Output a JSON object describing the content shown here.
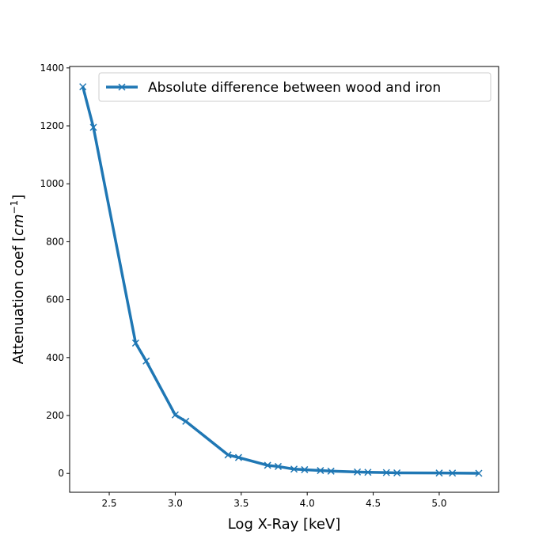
{
  "chart_data": {
    "type": "line",
    "title": "",
    "xlabel": "Log X-Ray [keV]",
    "ylabel_main": "Attenuation coef [",
    "ylabel_unit_base": "cm",
    "ylabel_unit_exp": "−1",
    "ylabel_close": "]",
    "xlim": [
      2.2,
      5.45
    ],
    "ylim": [
      -65,
      1405
    ],
    "xticks": [
      2.5,
      3.0,
      3.5,
      4.0,
      4.5,
      5.0
    ],
    "xtick_labels": [
      "2.5",
      "3.0",
      "3.5",
      "4.0",
      "4.5",
      "5.0"
    ],
    "yticks": [
      0,
      200,
      400,
      600,
      800,
      1000,
      1200,
      1400
    ],
    "ytick_labels": [
      "0",
      "200",
      "400",
      "600",
      "800",
      "1000",
      "1200",
      "1400"
    ],
    "grid": false,
    "legend_position": "top-right",
    "series": [
      {
        "name": "Absolute difference between wood and iron",
        "color": "#1f77b4",
        "marker": "x",
        "x": [
          2.3,
          2.38,
          2.7,
          2.78,
          3.0,
          3.08,
          3.4,
          3.48,
          3.7,
          3.78,
          3.9,
          3.98,
          4.1,
          4.18,
          4.38,
          4.46,
          4.6,
          4.68,
          5.0,
          5.1,
          5.3
        ],
        "y": [
          1335,
          1195,
          450,
          388,
          202,
          180,
          64,
          55,
          28,
          24,
          15,
          13,
          10,
          8,
          5,
          4,
          3,
          2,
          1.5,
          1.2,
          0.5
        ]
      }
    ]
  }
}
